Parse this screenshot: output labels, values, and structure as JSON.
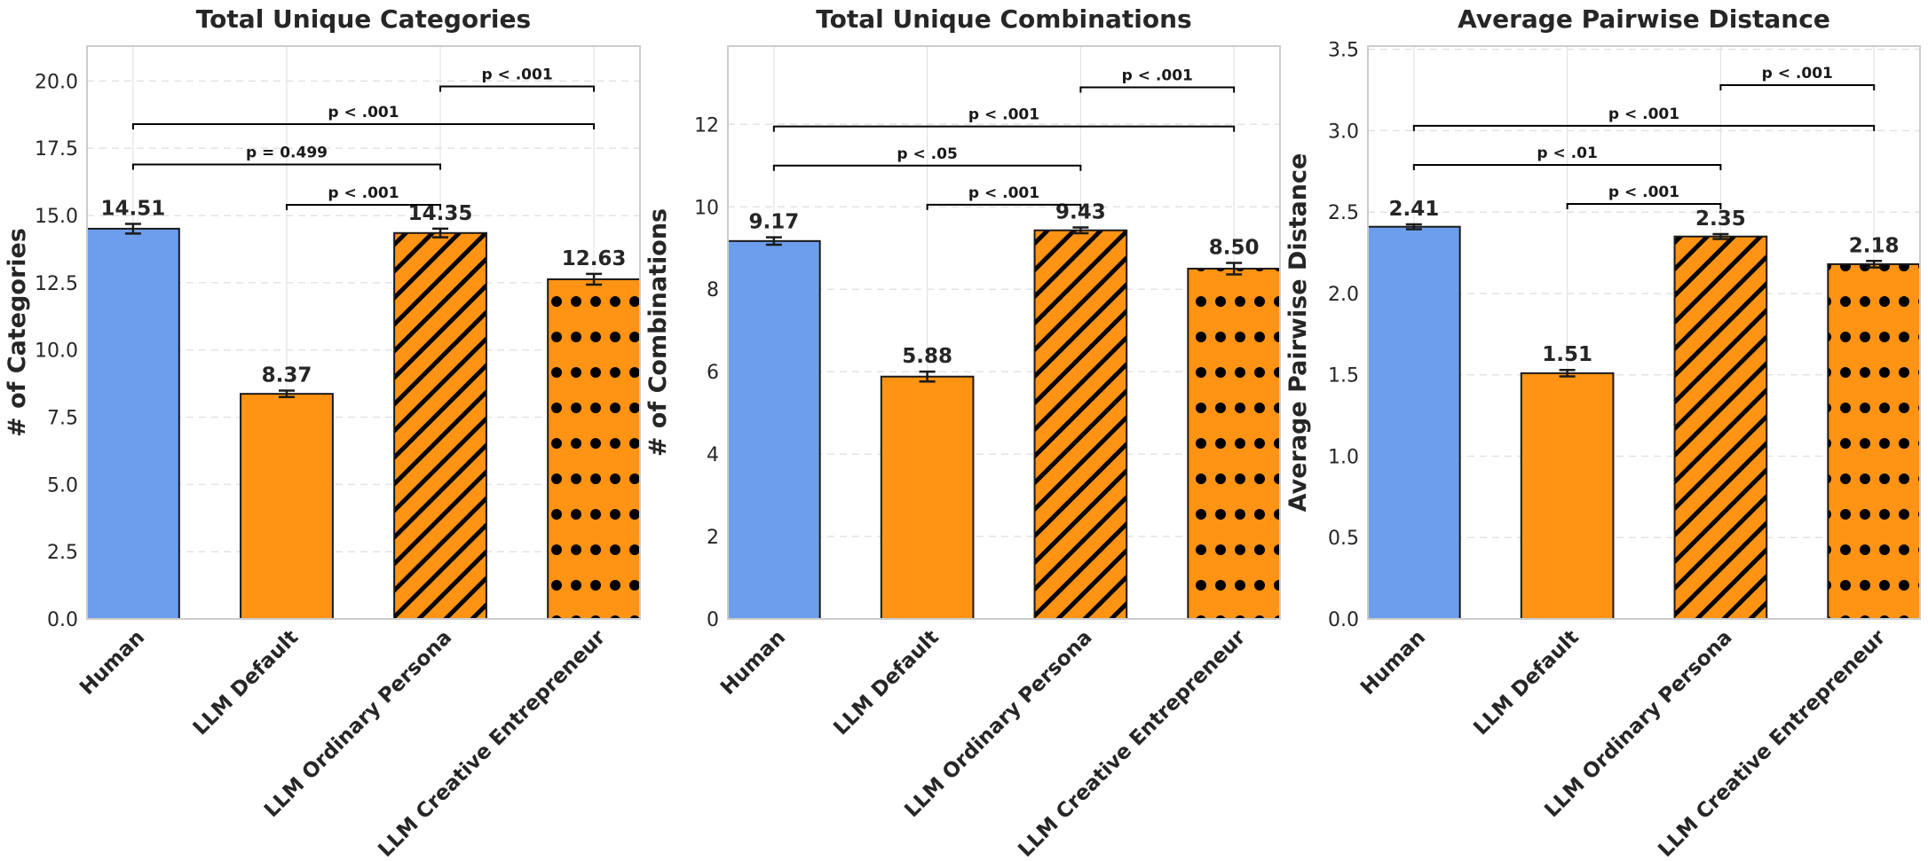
{
  "chart_data": [
    {
      "type": "bar",
      "title": "Total Unique Categories",
      "xlabel": "",
      "ylabel": "# of Categories",
      "ylim": [
        0,
        21.3
      ],
      "yticks": [
        "0.0",
        "2.5",
        "5.0",
        "7.5",
        "10.0",
        "12.5",
        "15.0",
        "17.5",
        "20.0"
      ],
      "ytick_values": [
        0,
        2.5,
        5,
        7.5,
        10,
        12.5,
        15,
        17.5,
        20
      ],
      "categories": [
        "Human",
        "LLM Default",
        "LLM Ordinary Persona",
        "LLM Creative Entrepreneur"
      ],
      "values": [
        14.51,
        8.37,
        14.35,
        12.63
      ],
      "value_labels": [
        "14.51",
        "8.37",
        "14.35",
        "12.63"
      ],
      "errors": [
        0.18,
        0.12,
        0.16,
        0.2
      ],
      "colors": [
        "#6d9eeb",
        "#ff9313",
        "#ff9313",
        "#ff9313"
      ],
      "patterns": [
        "none",
        "none",
        "diagonal",
        "dots"
      ],
      "grid": true,
      "significance": [
        {
          "from": 1,
          "to": 2,
          "y": 15.4,
          "label": "p < .001"
        },
        {
          "from": 0,
          "to": 2,
          "y": 16.9,
          "label": "p = 0.499"
        },
        {
          "from": 0,
          "to": 3,
          "y": 18.4,
          "label": "p < .001"
        },
        {
          "from": 2,
          "to": 3,
          "y": 19.8,
          "label": "p < .001"
        }
      ]
    },
    {
      "type": "bar",
      "title": "Total Unique Combinations",
      "xlabel": "",
      "ylabel": "# of Combinations",
      "ylim": [
        0,
        13.9
      ],
      "yticks": [
        "0",
        "2",
        "4",
        "6",
        "8",
        "10",
        "12"
      ],
      "ytick_values": [
        0,
        2,
        4,
        6,
        8,
        10,
        12
      ],
      "categories": [
        "Human",
        "LLM Default",
        "LLM Ordinary Persona",
        "LLM Creative Entrepreneur"
      ],
      "values": [
        9.17,
        5.88,
        9.43,
        8.5
      ],
      "value_labels": [
        "9.17",
        "5.88",
        "9.43",
        "8.50"
      ],
      "errors": [
        0.09,
        0.12,
        0.07,
        0.14
      ],
      "colors": [
        "#6d9eeb",
        "#ff9313",
        "#ff9313",
        "#ff9313"
      ],
      "patterns": [
        "none",
        "none",
        "diagonal",
        "dots"
      ],
      "grid": true,
      "significance": [
        {
          "from": 1,
          "to": 2,
          "y": 10.05,
          "label": "p < .001"
        },
        {
          "from": 0,
          "to": 2,
          "y": 11.0,
          "label": "p < .05"
        },
        {
          "from": 0,
          "to": 3,
          "y": 11.95,
          "label": "p < .001"
        },
        {
          "from": 2,
          "to": 3,
          "y": 12.9,
          "label": "p < .001"
        }
      ]
    },
    {
      "type": "bar",
      "title": "Average Pairwise Distance",
      "xlabel": "",
      "ylabel": "Average Pairwise Distance",
      "ylim": [
        0,
        3.52
      ],
      "yticks": [
        "0.0",
        "0.5",
        "1.0",
        "1.5",
        "2.0",
        "2.5",
        "3.0",
        "3.5"
      ],
      "ytick_values": [
        0,
        0.5,
        1,
        1.5,
        2,
        2.5,
        3,
        3.5
      ],
      "categories": [
        "Human",
        "LLM Default",
        "LLM Ordinary Persona",
        "LLM Creative Entrepreneur"
      ],
      "values": [
        2.41,
        1.51,
        2.35,
        2.18
      ],
      "value_labels": [
        "2.41",
        "1.51",
        "2.35",
        "2.18"
      ],
      "errors": [
        0.015,
        0.02,
        0.015,
        0.02
      ],
      "colors": [
        "#6d9eeb",
        "#ff9313",
        "#ff9313",
        "#ff9313"
      ],
      "patterns": [
        "none",
        "none",
        "diagonal",
        "dots"
      ],
      "grid": true,
      "significance": [
        {
          "from": 1,
          "to": 2,
          "y": 2.55,
          "label": "p < .001"
        },
        {
          "from": 0,
          "to": 2,
          "y": 2.79,
          "label": "p < .01"
        },
        {
          "from": 0,
          "to": 3,
          "y": 3.03,
          "label": "p < .001"
        },
        {
          "from": 2,
          "to": 3,
          "y": 3.28,
          "label": "p < .001"
        }
      ]
    }
  ]
}
